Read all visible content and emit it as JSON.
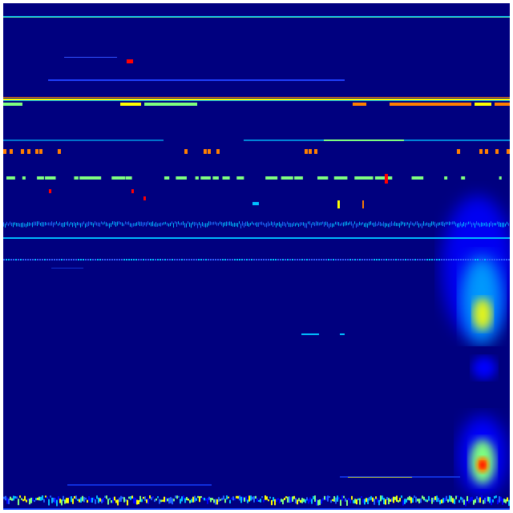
{
  "chart_data": {
    "type": "heatmap",
    "colormap": "jet",
    "colors": {
      "background": "#00007f",
      "low": "#0000ff",
      "mid_low": "#00bfff",
      "mid": "#7fff7f",
      "mid_high": "#ffff00",
      "high": "#ff7f00",
      "max": "#ff0000"
    },
    "axes_visible": false,
    "grid": false,
    "legend": "none"
  }
}
